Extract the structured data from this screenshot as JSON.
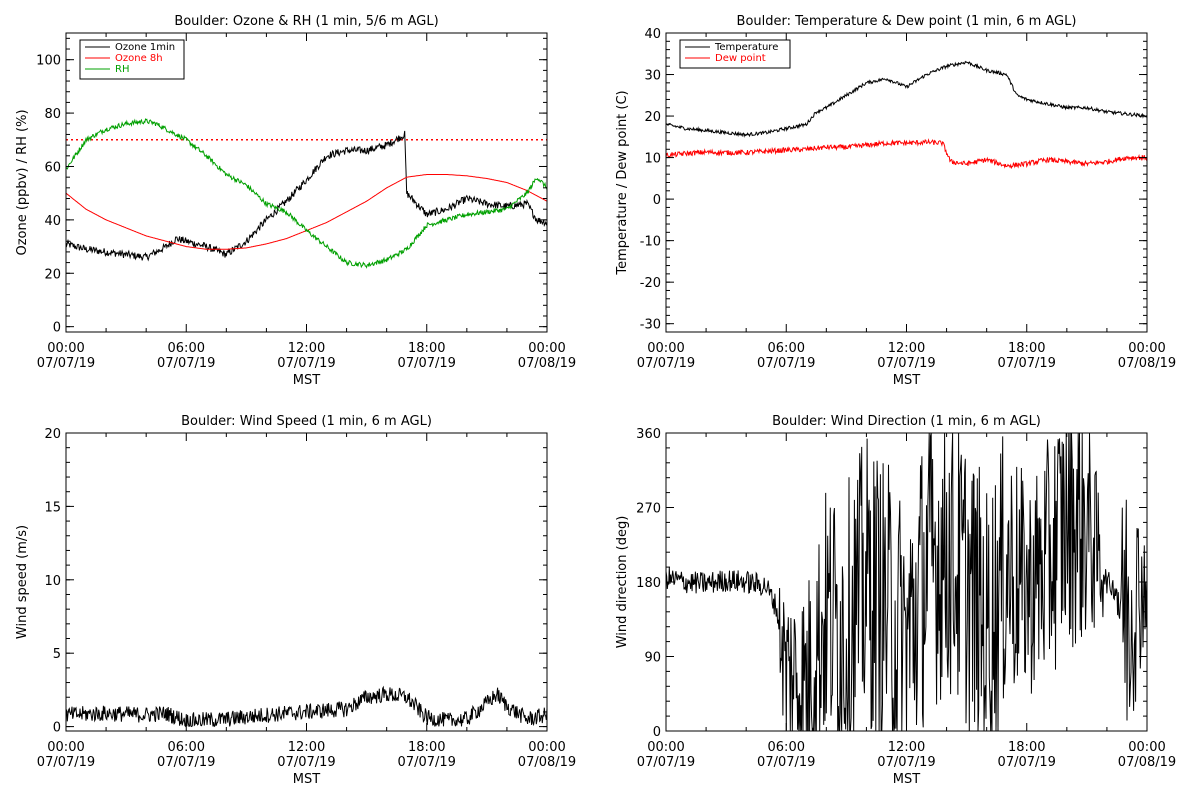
{
  "chart_data": [
    {
      "type": "line",
      "title": "Boulder: Ozone & RH (1 min, 5/6 m AGL)",
      "xlabel": "MST",
      "ylabel": "Ozone (ppbv) / RH (%)",
      "xlim": [
        0,
        24
      ],
      "ylim": [
        -2,
        110
      ],
      "yticks": [
        0,
        20,
        40,
        60,
        80,
        100
      ],
      "ytick_labels": [
        "0",
        "20",
        "40",
        "60",
        "80",
        "100"
      ],
      "xticks": [
        0,
        6,
        12,
        18,
        24
      ],
      "xtick_labels": [
        "00:00",
        "06:00",
        "12:00",
        "18:00",
        "00:00"
      ],
      "xtick_dates": [
        "07/07/19",
        "07/07/19",
        "07/07/19",
        "07/07/19",
        "07/08/19"
      ],
      "legend": "top-left",
      "reference_line": {
        "y": 70,
        "color": "#ff0000",
        "style": "dotted"
      },
      "series": [
        {
          "name": "Ozone 1min",
          "color": "#000000",
          "noise": 1.4,
          "x": [
            0,
            1,
            2,
            3,
            4,
            5,
            5.5,
            6,
            7,
            8,
            9,
            10,
            11,
            12,
            13,
            14,
            15,
            16,
            16.9,
            17,
            18,
            19,
            20,
            21,
            22,
            23,
            23.5,
            24
          ],
          "y": [
            31,
            29,
            28,
            27,
            26,
            30,
            33,
            32,
            30,
            27,
            32,
            40,
            47,
            55,
            64,
            66,
            66,
            68,
            72,
            50,
            42,
            44,
            48,
            46,
            45,
            46,
            40,
            39
          ]
        },
        {
          "name": "Ozone 8h",
          "color": "#ff0000",
          "noise": 0,
          "x": [
            0,
            1,
            2,
            3,
            4,
            5,
            6,
            7,
            8,
            9,
            10,
            11,
            12,
            13,
            14,
            15,
            16,
            17,
            18,
            19,
            20,
            21,
            22,
            23,
            24
          ],
          "y": [
            50,
            44,
            40,
            37,
            34,
            32,
            30,
            29,
            29,
            29.5,
            31,
            33,
            36,
            39,
            43,
            47,
            52,
            56,
            57,
            57,
            56.5,
            55.5,
            54,
            51,
            47
          ]
        },
        {
          "name": "RH",
          "color": "#00a000",
          "noise": 0.9,
          "x": [
            0,
            1,
            2,
            3,
            4,
            4.5,
            5,
            6,
            7,
            8,
            9,
            10,
            11,
            12,
            13,
            14,
            15,
            16,
            17,
            18,
            19,
            20,
            21,
            22,
            23,
            23.5,
            24
          ],
          "y": [
            59,
            70,
            74,
            76,
            77,
            76,
            74,
            70,
            64,
            57,
            53,
            46,
            43,
            36,
            30,
            24,
            23,
            25,
            29,
            38,
            40,
            42,
            43,
            44,
            50,
            56,
            52
          ]
        }
      ]
    },
    {
      "type": "line",
      "title": "Boulder: Temperature & Dew point (1 min, 6 m AGL)",
      "xlabel": "MST",
      "ylabel": "Temperature / Dew point (C)",
      "xlim": [
        0,
        24
      ],
      "ylim": [
        -32,
        40
      ],
      "yticks": [
        -30,
        -20,
        -10,
        0,
        10,
        20,
        30,
        40
      ],
      "ytick_labels": [
        "-30",
        "-20",
        "-10",
        "0",
        "10",
        "20",
        "30",
        "40"
      ],
      "xticks": [
        0,
        6,
        12,
        18,
        24
      ],
      "xtick_labels": [
        "00:00",
        "06:00",
        "12:00",
        "18:00",
        "00:00"
      ],
      "xtick_dates": [
        "07/07/19",
        "07/07/19",
        "07/07/19",
        "07/07/19",
        "07/08/19"
      ],
      "legend": "top-left",
      "series": [
        {
          "name": "Temperature",
          "color": "#000000",
          "noise": 0.4,
          "x": [
            0,
            1,
            2,
            3,
            4,
            5,
            6,
            7,
            7.5,
            8,
            9,
            10,
            11,
            12,
            13,
            14,
            15,
            16,
            17,
            17.5,
            18,
            19,
            20,
            21,
            22,
            23,
            24
          ],
          "y": [
            18,
            17,
            16.5,
            16,
            15.5,
            16,
            17,
            18,
            21,
            22,
            25,
            28,
            29,
            27,
            30,
            32,
            33,
            31,
            30,
            25,
            24,
            23,
            22,
            22,
            21,
            20.5,
            20
          ]
        },
        {
          "name": "Dew point",
          "color": "#ff0000",
          "noise": 0.6,
          "x": [
            0,
            1,
            2,
            3,
            4,
            5,
            6,
            7,
            8,
            9,
            10,
            11,
            12,
            13,
            13.8,
            14.2,
            15,
            16,
            17,
            18,
            19,
            20,
            21,
            22,
            23,
            24
          ],
          "y": [
            10.5,
            11,
            11.3,
            11.2,
            11.2,
            11.5,
            11.8,
            12,
            12.5,
            12.5,
            13,
            13.5,
            13.5,
            13.7,
            13.5,
            9,
            8.5,
            9.5,
            8,
            8.5,
            9.5,
            9,
            8.5,
            9,
            10,
            10
          ]
        }
      ]
    },
    {
      "type": "line",
      "title": "Boulder: Wind Speed (1 min, 6 m AGL)",
      "xlabel": "MST",
      "ylabel": "Wind speed (m/s)",
      "xlim": [
        0,
        24
      ],
      "ylim": [
        -0.3,
        20
      ],
      "yticks": [
        0,
        5,
        10,
        15,
        20
      ],
      "ytick_labels": [
        "0",
        "5",
        "10",
        "15",
        "20"
      ],
      "xticks": [
        0,
        6,
        12,
        18,
        24
      ],
      "xtick_labels": [
        "00:00",
        "06:00",
        "12:00",
        "18:00",
        "00:00"
      ],
      "xtick_dates": [
        "07/07/19",
        "07/07/19",
        "07/07/19",
        "07/07/19",
        "07/08/19"
      ],
      "series": [
        {
          "name": "",
          "color": "#000000",
          "noise": 0.55,
          "x": [
            0,
            2,
            4,
            5,
            6,
            8,
            10,
            12,
            14,
            15,
            16,
            17,
            18,
            19,
            20,
            21,
            21.5,
            22,
            23,
            24
          ],
          "y": [
            0.8,
            0.9,
            0.8,
            0.9,
            0.4,
            0.5,
            0.8,
            1.0,
            1.2,
            2.0,
            2.2,
            2.0,
            0.6,
            0.4,
            0.5,
            1.6,
            2.2,
            1.4,
            0.5,
            0.8
          ]
        }
      ]
    },
    {
      "type": "line",
      "title": "Boulder: Wind Direction (1 min, 6 m AGL)",
      "xlabel": "MST",
      "ylabel": "Wind direction (deg)",
      "xlim": [
        0,
        24
      ],
      "ylim": [
        0,
        360
      ],
      "yticks": [
        0,
        90,
        180,
        270,
        360
      ],
      "ytick_labels": [
        "0",
        "90",
        "180",
        "270",
        "360"
      ],
      "xticks": [
        0,
        6,
        12,
        18,
        24
      ],
      "xtick_labels": [
        "00:00",
        "06:00",
        "12:00",
        "18:00",
        "00:00"
      ],
      "xtick_dates": [
        "07/07/19",
        "07/07/19",
        "07/07/19",
        "07/07/19",
        "07/08/19"
      ],
      "series": [
        {
          "name": "",
          "color": "#000000",
          "noise": 14,
          "x": [
            0,
            1,
            2,
            3,
            4,
            5,
            5.5,
            6,
            7,
            8,
            9,
            10,
            11,
            12,
            13,
            14,
            15,
            16,
            17,
            18,
            19,
            20,
            21,
            22,
            22.5,
            23,
            24
          ],
          "y": [
            185,
            180,
            178,
            182,
            180,
            175,
            150,
            70,
            60,
            140,
            120,
            180,
            150,
            100,
            200,
            220,
            180,
            120,
            200,
            170,
            200,
            260,
            250,
            180,
            170,
            150,
            180
          ],
          "spread": [
            15,
            15,
            15,
            15,
            15,
            15,
            40,
            110,
            120,
            160,
            180,
            180,
            180,
            180,
            180,
            180,
            180,
            180,
            170,
            130,
            150,
            160,
            150,
            40,
            60,
            180,
            60
          ]
        }
      ]
    }
  ]
}
